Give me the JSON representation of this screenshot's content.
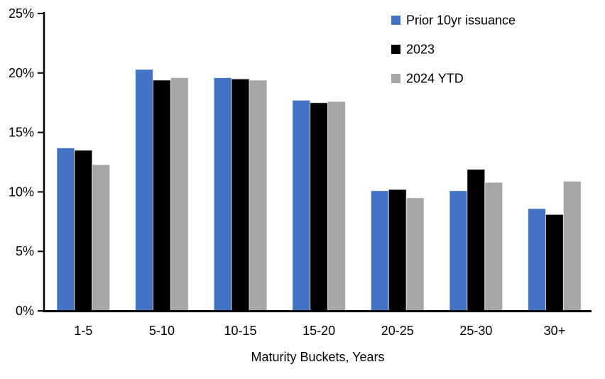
{
  "chart_data": {
    "type": "bar",
    "title": "",
    "xlabel": "Maturity Buckets, Years",
    "ylabel": "",
    "categories": [
      "1-5",
      "5-10",
      "10-15",
      "15-20",
      "20-25",
      "25-30",
      "30+"
    ],
    "series": [
      {
        "name": "Prior 10yr issuance",
        "color": "#4472C4",
        "values": [
          13.7,
          20.3,
          19.6,
          17.7,
          10.1,
          10.1,
          8.6
        ]
      },
      {
        "name": "2023",
        "color": "#000000",
        "values": [
          13.5,
          19.4,
          19.5,
          17.5,
          10.2,
          11.9,
          8.1
        ]
      },
      {
        "name": "2024 YTD",
        "color": "#A6A6A6",
        "values": [
          12.3,
          19.6,
          19.4,
          17.6,
          9.5,
          10.8,
          10.9
        ]
      }
    ],
    "ylim": [
      0,
      25
    ],
    "ytick_step": 5,
    "ytick_labels": [
      "0%",
      "5%",
      "10%",
      "15%",
      "20%",
      "25%"
    ],
    "grid": false,
    "legend_position": "top-right",
    "axis_color": "#000000",
    "background_color": "#ffffff"
  }
}
